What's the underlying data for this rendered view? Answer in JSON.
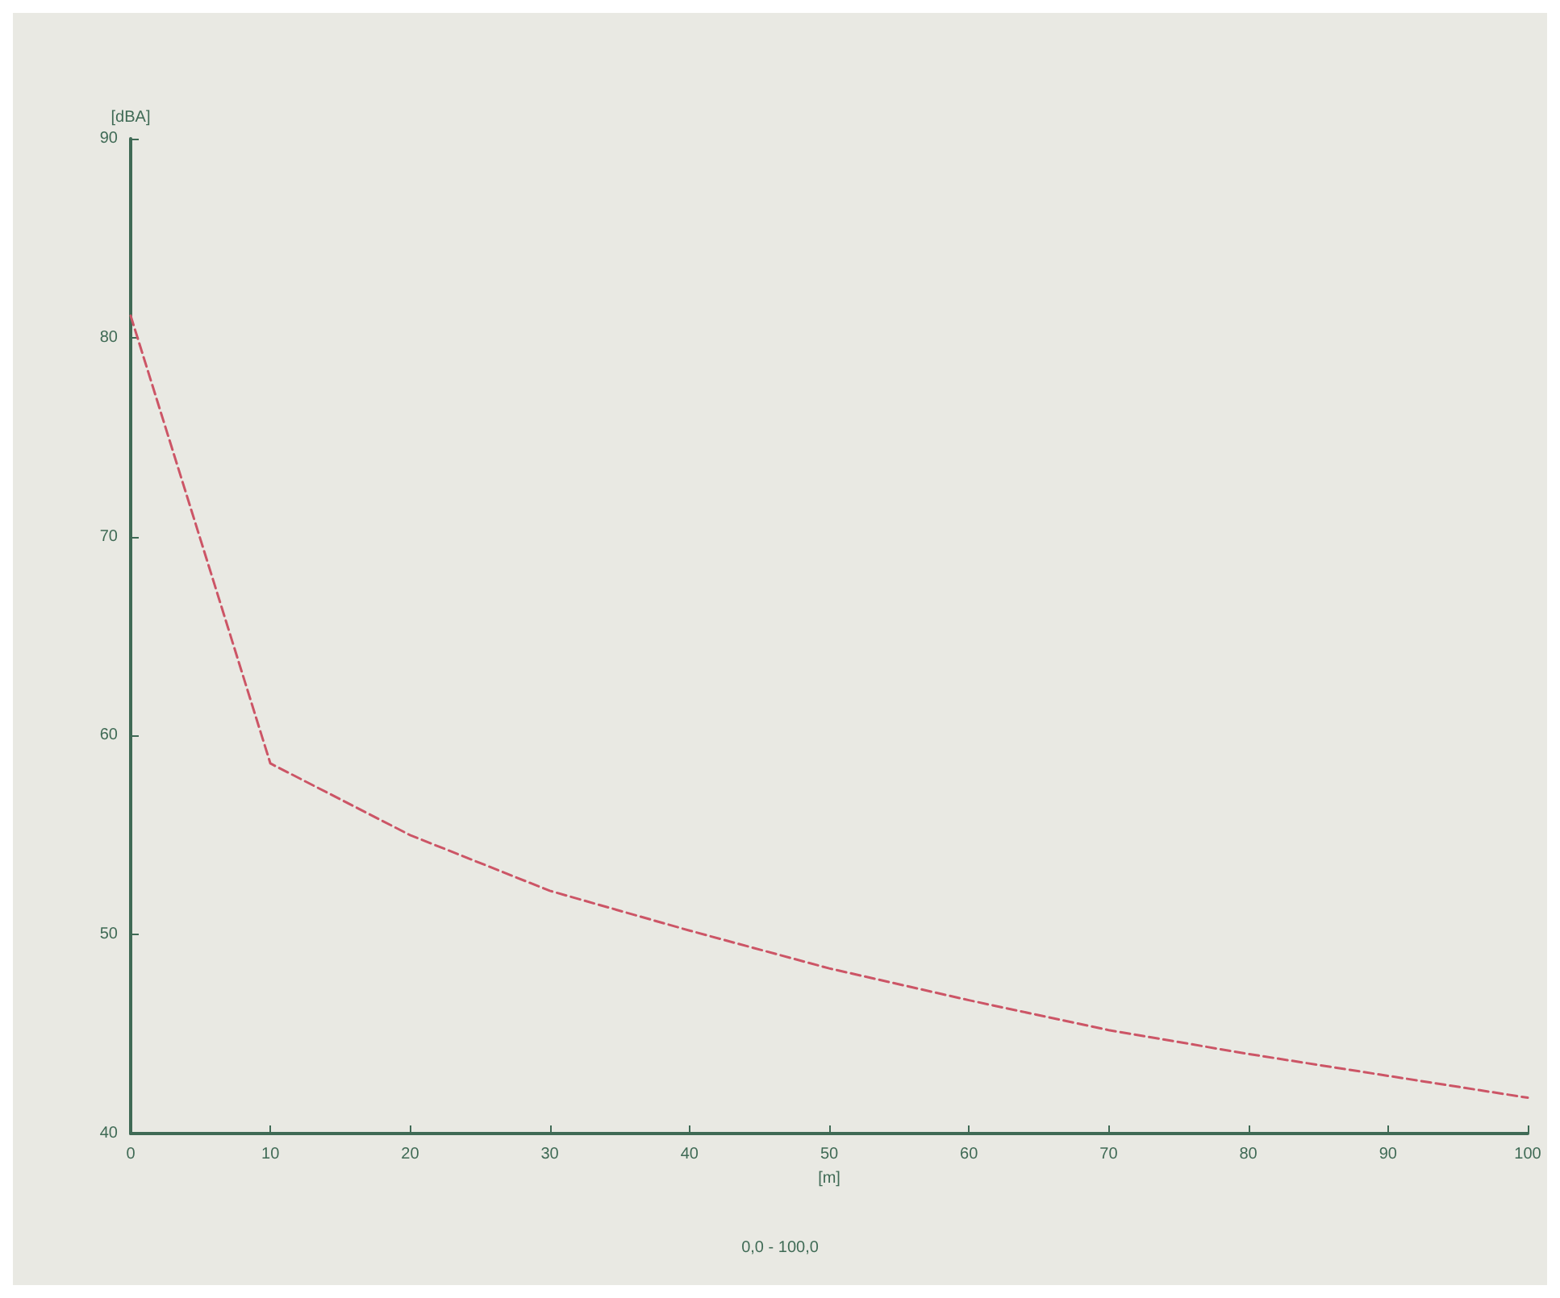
{
  "chart_data": {
    "type": "line",
    "xlabel": "[m]",
    "ylabel": "[dBA]",
    "annotations": [
      "0,0 - 100,0"
    ],
    "x": [
      0,
      10,
      20,
      30,
      40,
      50,
      60,
      70,
      80,
      90,
      100
    ],
    "series": [
      {
        "color": "#cc5566",
        "values": [
          81.1,
          58.6,
          55.0,
          52.2,
          50.2,
          48.3,
          46.7,
          45.2,
          44.0,
          42.9,
          41.8
        ]
      }
    ],
    "xlim": [
      0,
      100
    ],
    "xticks": [
      0,
      10,
      20,
      30,
      40,
      50,
      60,
      70,
      80,
      90,
      100
    ],
    "ylim": [
      40,
      90
    ],
    "yticks": [
      40,
      50,
      60,
      70,
      80,
      90
    ],
    "grid": false,
    "marker": "none",
    "line_style": "dashed"
  }
}
